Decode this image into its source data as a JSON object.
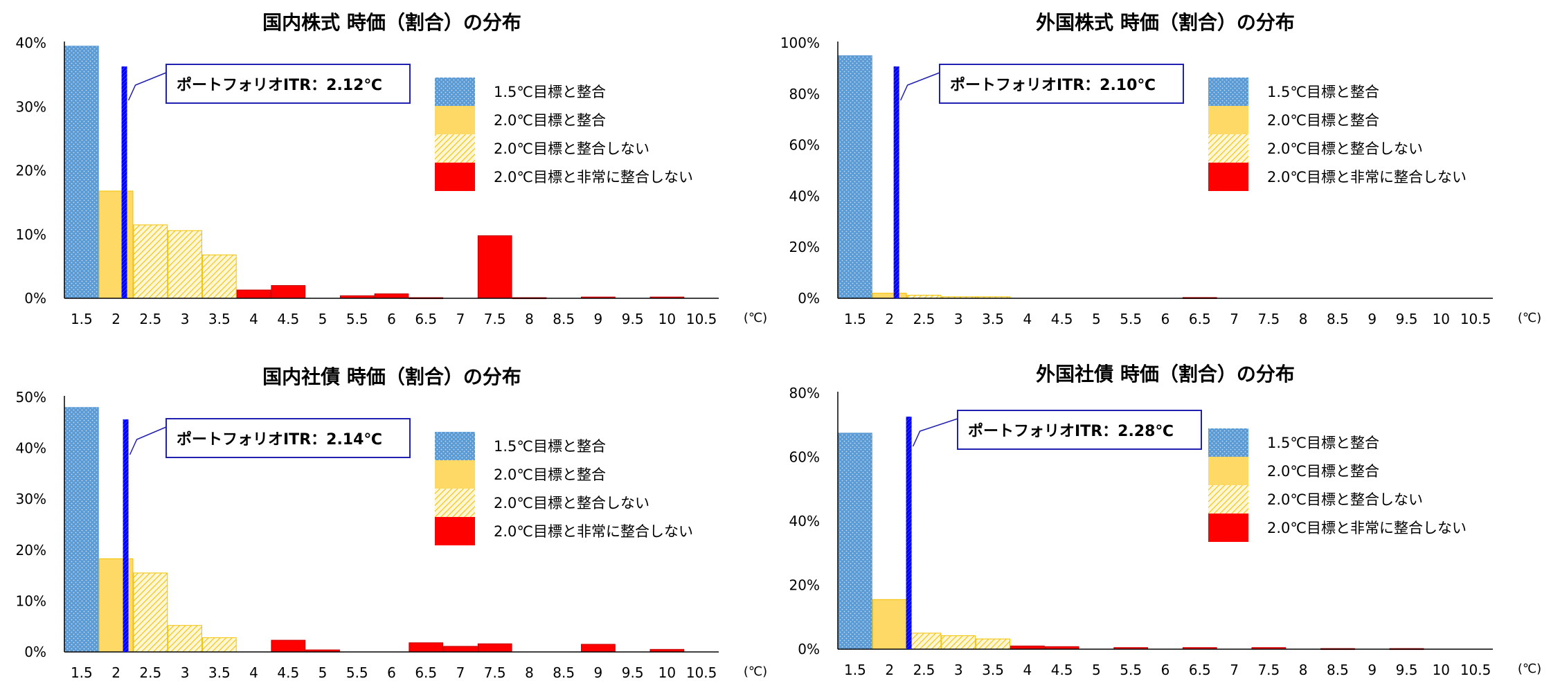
{
  "legend_labels": [
    "1.5℃目標と整合",
    "2.0℃目標と整合",
    "2.0℃目標と整合しない",
    "2.0℃目標と非常に整合しない"
  ],
  "unit_label": "(℃)",
  "colors": {
    "c15": "#5b9bd5",
    "c20": "#ffd966",
    "c20_hatch": "#f2c200",
    "c_bad": "#ff0000",
    "itr_line": "#0000ff",
    "box_border": "#1f1fb0"
  },
  "chart_data": [
    {
      "type": "bar",
      "title": "国内株式 時価（割合）の分布",
      "categories": [
        "1.5",
        "2",
        "2.5",
        "3",
        "3.5",
        "4",
        "4.5",
        "5",
        "5.5",
        "6",
        "6.5",
        "7",
        "7.5",
        "8",
        "8.5",
        "9",
        "9.5",
        "10",
        "10.5"
      ],
      "values": [
        39.5,
        16.8,
        11.5,
        10.6,
        6.8,
        1.3,
        2.0,
        0,
        0.4,
        0.7,
        0.1,
        0,
        9.8,
        0.1,
        0,
        0.2,
        0,
        0.2,
        0
      ],
      "value_unit": "%",
      "ylim": [
        0,
        40
      ],
      "yticks": [
        "0%",
        "10%",
        "20%",
        "30%",
        "40%"
      ],
      "itr_value": 2.12,
      "itr_label": "ポートフォリオITR：2.12℃",
      "legend": "top-right"
    },
    {
      "type": "bar",
      "title": "外国株式 時価（割合）の分布",
      "categories": [
        "1.5",
        "2",
        "2.5",
        "3",
        "3.5",
        "4",
        "4.5",
        "5",
        "5.5",
        "6",
        "6.5",
        "7",
        "7.5",
        "8",
        "8.5",
        "9",
        "9.5",
        "10",
        "10.5"
      ],
      "values": [
        95.0,
        2.0,
        1.2,
        0.6,
        0.6,
        0,
        0,
        0,
        0,
        0,
        0.3,
        0,
        0,
        0,
        0,
        0,
        0,
        0,
        0
      ],
      "value_unit": "%",
      "ylim": [
        0,
        100
      ],
      "yticks": [
        "0%",
        "20%",
        "40%",
        "60%",
        "80%",
        "100%"
      ],
      "itr_value": 2.1,
      "itr_label": "ポートフォリオITR：2.10℃",
      "legend": "top-right"
    },
    {
      "type": "bar",
      "title": "国内社債 時価（割合）の分布",
      "categories": [
        "1.5",
        "2",
        "2.5",
        "3",
        "3.5",
        "4",
        "4.5",
        "5",
        "5.5",
        "6",
        "6.5",
        "7",
        "7.5",
        "8",
        "8.5",
        "9",
        "9.5",
        "10",
        "10.5"
      ],
      "values": [
        48.0,
        18.3,
        15.5,
        5.2,
        2.8,
        0,
        2.3,
        0.4,
        0,
        0,
        1.8,
        1.1,
        1.6,
        0,
        0,
        1.5,
        0,
        0.5,
        0
      ],
      "value_unit": "%",
      "ylim": [
        0,
        50
      ],
      "yticks": [
        "0%",
        "10%",
        "20%",
        "30%",
        "40%",
        "50%"
      ],
      "itr_value": 2.14,
      "itr_label": "ポートフォリオITR：2.14℃",
      "legend": "top-right"
    },
    {
      "type": "bar",
      "title": "外国社債 時価（割合）の分布",
      "categories": [
        "1.5",
        "2",
        "2.5",
        "3",
        "3.5",
        "4",
        "4.5",
        "5",
        "5.5",
        "6",
        "6.5",
        "7",
        "7.5",
        "8",
        "8.5",
        "9",
        "9.5",
        "10",
        "10.5"
      ],
      "values": [
        67.5,
        15.5,
        5.0,
        4.2,
        3.2,
        1.0,
        0.8,
        0,
        0.5,
        0,
        0.5,
        0,
        0.5,
        0,
        0.2,
        0,
        0.2,
        0,
        0
      ],
      "value_unit": "%",
      "ylim": [
        0,
        80
      ],
      "yticks": [
        "0%",
        "20%",
        "40%",
        "60%",
        "80%"
      ],
      "itr_value": 2.28,
      "itr_label": "ポートフォリオITR：2.28℃",
      "legend": "top-right"
    }
  ]
}
